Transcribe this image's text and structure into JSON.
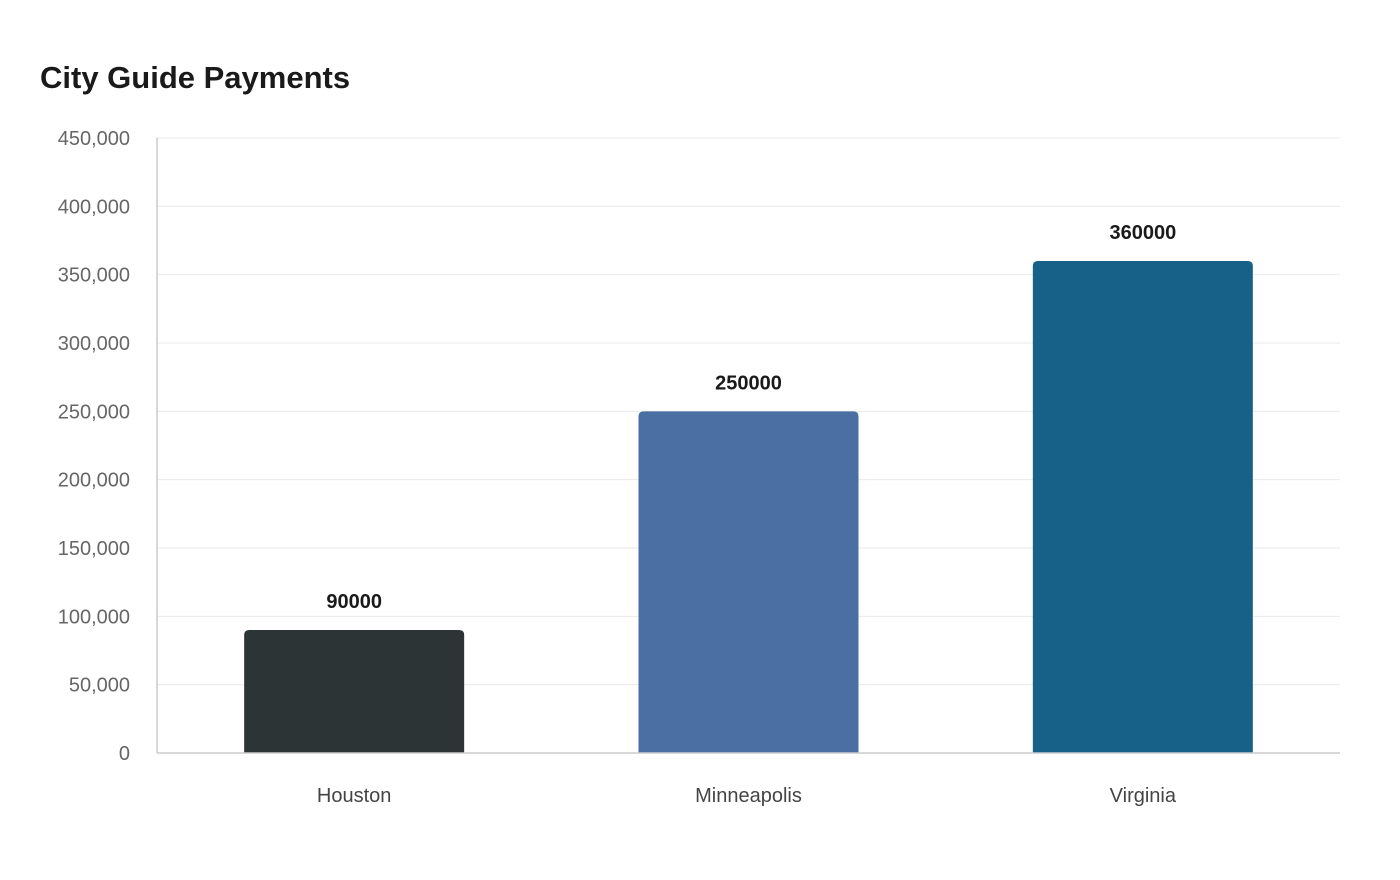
{
  "chart_data": {
    "type": "bar",
    "title": "City Guide Payments",
    "xlabel": "",
    "ylabel": "",
    "categories": [
      "Houston",
      "Minneapolis",
      "Virginia"
    ],
    "values": [
      90000,
      250000,
      360000
    ],
    "colors": [
      "#2d3436",
      "#4b6ea3",
      "#176189"
    ],
    "ylim": [
      0,
      450000
    ],
    "yticks": [
      0,
      50000,
      100000,
      150000,
      200000,
      250000,
      300000,
      350000,
      400000,
      450000
    ],
    "ytick_labels": [
      "0",
      "50,000",
      "100,000",
      "150,000",
      "200,000",
      "250,000",
      "300,000",
      "350,000",
      "400,000",
      "450,000"
    ],
    "data_labels": [
      "90000",
      "250000",
      "360000"
    ],
    "grid": true,
    "legend": "none"
  }
}
